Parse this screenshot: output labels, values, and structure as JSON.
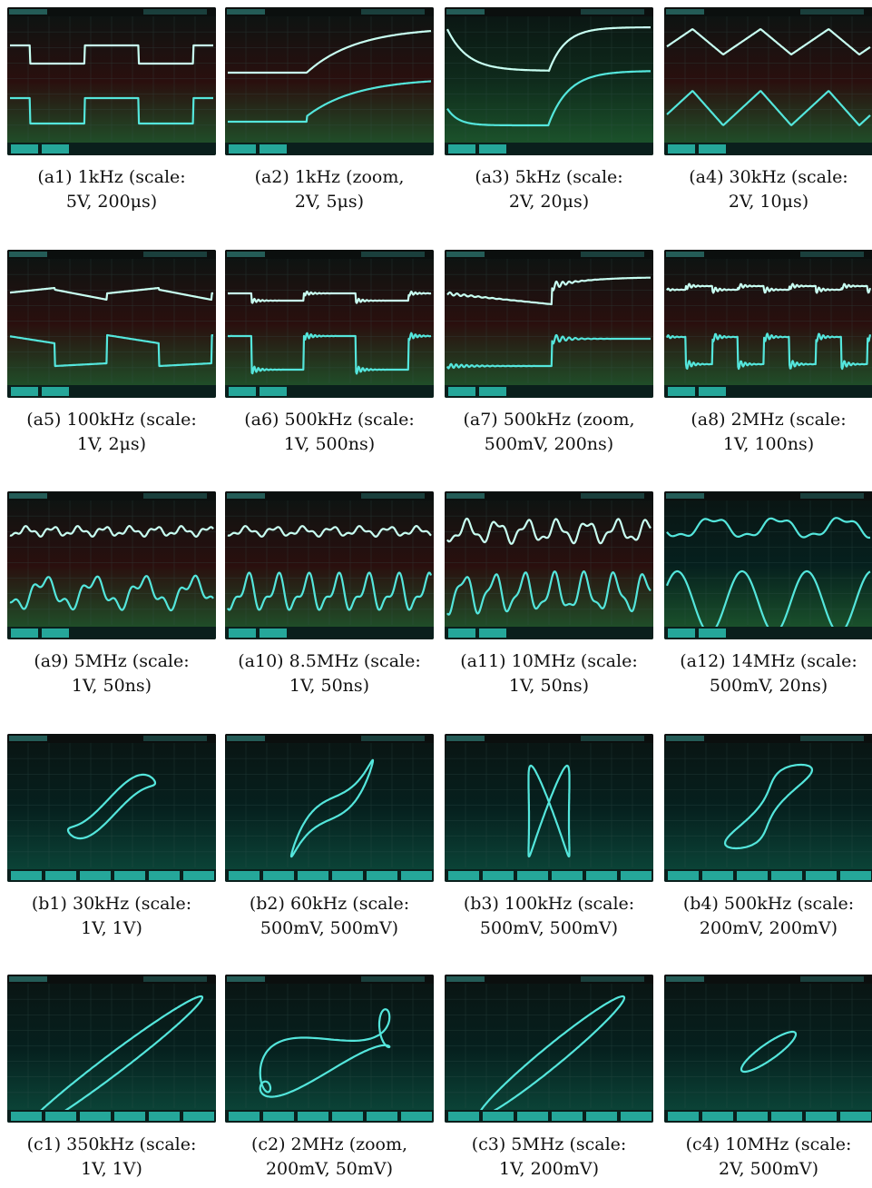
{
  "panels": [
    {
      "id": "a1",
      "caption1": "(a1) 1kHz (scale:",
      "caption2": "5V, 200μs)",
      "mode": "time",
      "wave": "square_rc1",
      "bg": "red"
    },
    {
      "id": "a2",
      "caption1": "(a2) 1kHz (zoom,",
      "caption2": "2V, 5μs)",
      "mode": "time",
      "wave": "rise_zoom",
      "bg": "red"
    },
    {
      "id": "a3",
      "caption1": "(a3) 5kHz (scale:",
      "caption2": "2V, 20μs)",
      "mode": "time",
      "wave": "rc_exp",
      "bg": "green"
    },
    {
      "id": "a4",
      "caption1": "(a4) 30kHz (scale:",
      "caption2": "2V, 10μs)",
      "mode": "time",
      "wave": "saw",
      "bg": "red"
    },
    {
      "id": "a5",
      "caption1": "(a5) 100kHz (scale:",
      "caption2": "1V, 2μs)",
      "mode": "time",
      "wave": "square_tilt",
      "bg": "red"
    },
    {
      "id": "a6",
      "caption1": "(a6) 500kHz (scale:",
      "caption2": "1V, 500ns)",
      "mode": "time",
      "wave": "square_ring",
      "bg": "red"
    },
    {
      "id": "a7",
      "caption1": "(a7) 500kHz (zoom,",
      "caption2": "500mV, 200ns)",
      "mode": "time",
      "wave": "zoom_ring",
      "bg": "red"
    },
    {
      "id": "a8",
      "caption1": "(a8) 2MHz (scale:",
      "caption2": "1V, 100ns)",
      "mode": "time",
      "wave": "square_ring2",
      "bg": "red"
    },
    {
      "id": "a9",
      "caption1": "(a9) 5MHz (scale:",
      "caption2": "1V, 50ns)",
      "mode": "time",
      "wave": "multi5",
      "bg": "red"
    },
    {
      "id": "a10",
      "caption1": "(a10) 8.5MHz (scale:",
      "caption2": "1V, 50ns)",
      "mode": "time",
      "wave": "multi8",
      "bg": "red"
    },
    {
      "id": "a11",
      "caption1": "(a11) 10MHz (scale:",
      "caption2": "1V, 50ns)",
      "mode": "time",
      "wave": "multi10",
      "bg": "red"
    },
    {
      "id": "a12",
      "caption1": "(a12) 14MHz (scale:",
      "caption2": "500mV, 20ns)",
      "mode": "time",
      "wave": "sine",
      "bg": "dark"
    },
    {
      "id": "b1",
      "caption1": "(b1) 30kHz (scale:",
      "caption2": "1V, 1V)",
      "mode": "xy",
      "wave": "xy_b1",
      "bg": "dark"
    },
    {
      "id": "b2",
      "caption1": "(b2) 60kHz (scale:",
      "caption2": "500mV, 500mV)",
      "mode": "xy",
      "wave": "xy_b2",
      "bg": "dark"
    },
    {
      "id": "b3",
      "caption1": "(b3) 100kHz (scale:",
      "caption2": "500mV, 500mV)",
      "mode": "xy",
      "wave": "xy_b3",
      "bg": "dark"
    },
    {
      "id": "b4",
      "caption1": "(b4) 500kHz (scale:",
      "caption2": "200mV, 200mV)",
      "mode": "xy",
      "wave": "xy_b4",
      "bg": "dark"
    },
    {
      "id": "c1",
      "caption1": "(c1) 350kHz (scale:",
      "caption2": "1V, 1V)",
      "mode": "xy",
      "wave": "xy_c1",
      "bg": "dark"
    },
    {
      "id": "c2",
      "caption1": "(c2) 2MHz (zoom,",
      "caption2": "200mV, 50mV)",
      "mode": "xy",
      "wave": "xy_c2",
      "bg": "dark"
    },
    {
      "id": "c3",
      "caption1": "(c3) 5MHz (scale:",
      "caption2": "1V, 200mV)",
      "mode": "xy",
      "wave": "xy_c3",
      "bg": "dark"
    },
    {
      "id": "c4",
      "caption1": "(c4) 10MHz (scale:",
      "caption2": "2V, 500mV)",
      "mode": "xy",
      "wave": "xy_c4",
      "bg": "dark"
    }
  ],
  "colors": {
    "trace": "#54e6dc",
    "trace_bright": "#c8fff2",
    "screen_red": "#2a0f0e",
    "screen_green": "#0f2b1c",
    "screen_dark": "#06201e",
    "softkey": "#2fd6c4"
  }
}
